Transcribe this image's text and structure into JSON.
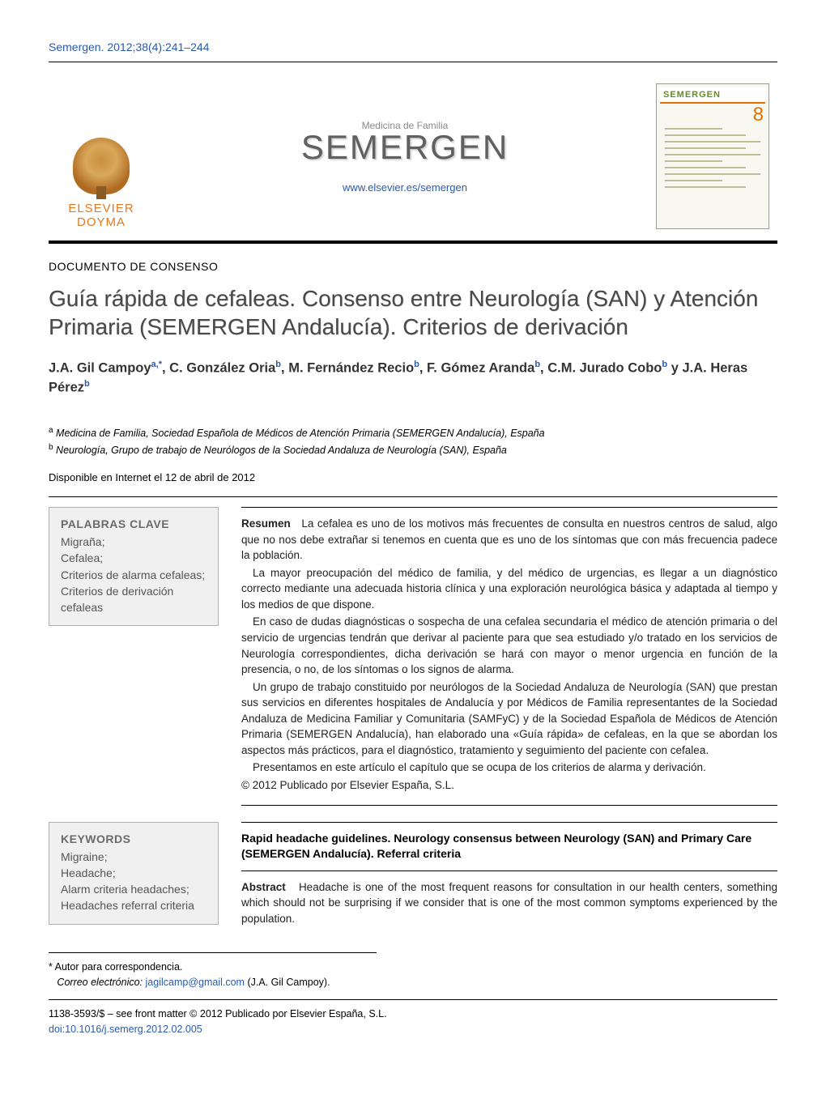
{
  "page_ref": "Semergen. 2012;38(4):241–244",
  "publisher_logo": {
    "line1": "ELSEVIER",
    "line2": "DOYMA"
  },
  "journal": {
    "subtitle": "Medicina de Familia",
    "name": "SEMERGEN",
    "url": "www.elsevier.es/semergen"
  },
  "cover": {
    "head": "SEMERGEN",
    "issue": "8"
  },
  "doc_type": "DOCUMENTO DE CONSENSO",
  "title": "Guía rápida de cefaleas. Consenso entre Neurología (SAN) y Atención Primaria (SEMERGEN Andalucía). Criterios de derivación",
  "authors_html": "J.A. Gil Campoy<sup>a,*</sup>, C. González Oria<sup>b</sup>, M. Fernández Recio<sup>b</sup>, F. Gómez Aranda<sup>b</sup>, C.M. Jurado Cobo<sup>b</sup> y J.A. Heras Pérez<sup>b</sup>",
  "affiliations": {
    "a": "Medicina de Familia, Sociedad Española de Médicos de Atención Primaria (SEMERGEN Andalucía), España",
    "b": "Neurología, Grupo de trabajo de Neurólogos de la Sociedad Andaluza de Neurología (SAN), España"
  },
  "availability": "Disponible en Internet el 12 de abril de 2012",
  "keywords_es": {
    "title": "PALABRAS CLAVE",
    "items": "Migraña;\nCefalea;\nCriterios de alarma cefaleas;\nCriterios de derivación cefaleas"
  },
  "keywords_en": {
    "title": "KEYWORDS",
    "items": "Migraine;\nHeadache;\nAlarm criteria headaches;\nHeadaches referral criteria"
  },
  "abstract_es": {
    "lead": "Resumen",
    "p1": "La cefalea es uno de los motivos más frecuentes de consulta en nuestros centros de salud, algo que no nos debe extrañar si tenemos en cuenta que es uno de los síntomas que con más frecuencia padece la población.",
    "p2": "La mayor preocupación del médico de familia, y del médico de urgencias, es llegar a un diagnóstico correcto mediante una adecuada historia clínica y una exploración neurológica básica y adaptada al tiempo y los medios de que dispone.",
    "p3": "En caso de dudas diagnósticas o sospecha de una cefalea secundaria el médico de atención primaria o del servicio de urgencias tendrán que derivar al paciente para que sea estudiado y/o tratado en los servicios de Neurología correspondientes, dicha derivación se hará con mayor o menor urgencia en función de la presencia, o no, de los síntomas o los signos de alarma.",
    "p4": "Un grupo de trabajo constituido por neurólogos de la Sociedad Andaluza de Neurología (SAN) que prestan sus servicios en diferentes hospitales de Andalucía y por Médicos de Familia representantes de la Sociedad Andaluza de Medicina Familiar y Comunitaria (SAMFyC) y de la Sociedad Española de Médicos de Atención Primaria (SEMERGEN Andalucía), han elaborado una «Guía rápida» de cefaleas, en la que se abordan los aspectos más prácticos, para el diagnóstico, tratamiento y seguimiento del paciente con cefalea.",
    "p5": "Presentamos en este artículo el capítulo que se ocupa de los criterios de alarma y derivación.",
    "copyright": "© 2012 Publicado por Elsevier España, S.L."
  },
  "abstract_en": {
    "title": "Rapid headache guidelines. Neurology consensus between Neurology (SAN) and Primary Care (SEMERGEN Andalucía). Referral criteria",
    "lead": "Abstract",
    "p1": "Headache is one of the most frequent reasons for consultation in our health centers, something which should not be surprising if we consider that is one of the most common symptoms experienced by the population."
  },
  "correspondence": {
    "label": "* Autor para correspondencia.",
    "email_label": "Correo electrónico:",
    "email": "jagilcamp@gmail.com",
    "name": "(J.A. Gil Campoy)."
  },
  "footer": {
    "issn_line": "1138-3593/$ – see front matter © 2012 Publicado por Elsevier España, S.L.",
    "doi": "doi:10.1016/j.semerg.2012.02.005"
  },
  "colors": {
    "link": "#2a5aab",
    "accent_orange": "#e76f00",
    "logo_orange": "#e07a1f",
    "kw_bg": "#f0f0f0",
    "kw_border": "#b0b0b0",
    "title_grey": "#4a4a4a"
  }
}
